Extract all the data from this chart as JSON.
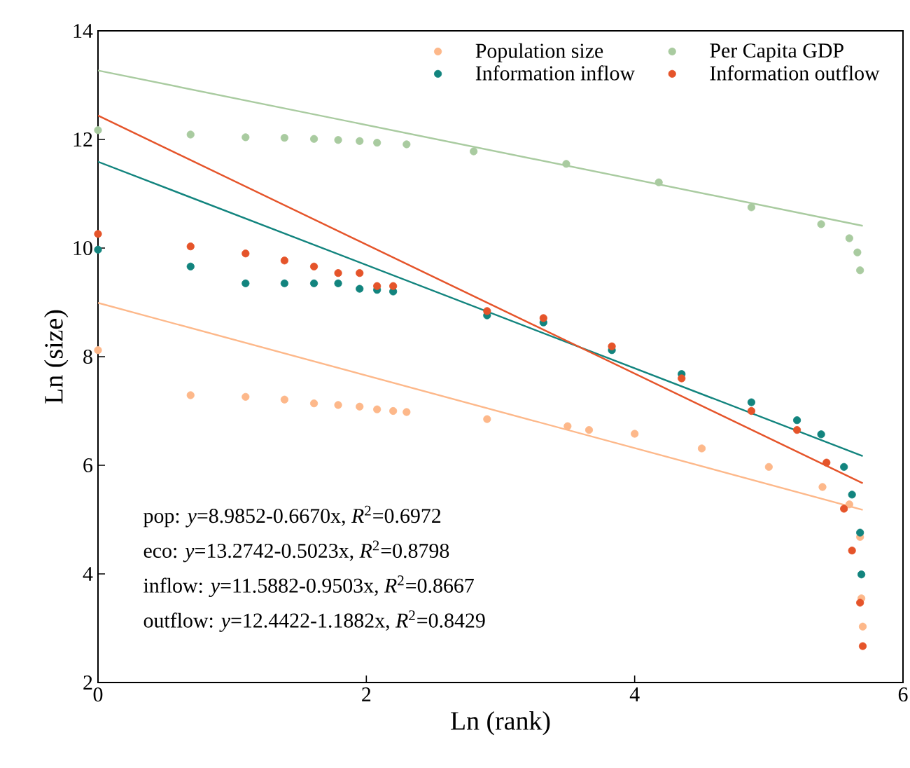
{
  "chart_data": {
    "type": "scatter",
    "xlabel": "Ln (rank)",
    "ylabel": "Ln (size)",
    "xlim": [
      0,
      6
    ],
    "ylim": [
      2,
      14
    ],
    "xticks": [
      0,
      2,
      4,
      6
    ],
    "yticks": [
      2,
      4,
      6,
      8,
      10,
      12,
      14
    ],
    "grid": false,
    "legend": "top right",
    "series": [
      {
        "name": "Population size",
        "marker": "circle",
        "color": "#fdb88a",
        "x": [
          0,
          0.69,
          1.1,
          1.39,
          1.61,
          1.79,
          1.95,
          2.08,
          2.2,
          2.3,
          2.9,
          3.5,
          3.66,
          4.0,
          4.5,
          5.0,
          5.4,
          5.6,
          5.68,
          5.69,
          5.7
        ],
        "values": [
          8.12,
          7.29,
          7.26,
          7.21,
          7.14,
          7.11,
          7.08,
          7.03,
          7.0,
          6.98,
          6.85,
          6.72,
          6.65,
          6.58,
          6.31,
          5.97,
          5.6,
          5.28,
          4.68,
          3.55,
          3.03
        ]
      },
      {
        "name": "Per Capita GDP",
        "marker": "circle",
        "color": "#a9cba0",
        "x": [
          0,
          0.69,
          1.1,
          1.39,
          1.61,
          1.79,
          1.95,
          2.08,
          2.3,
          2.8,
          3.49,
          4.18,
          4.87,
          5.39,
          5.6,
          5.66,
          5.68
        ],
        "values": [
          12.17,
          12.09,
          12.04,
          12.03,
          12.01,
          11.99,
          11.97,
          11.94,
          11.91,
          11.78,
          11.55,
          11.21,
          10.75,
          10.44,
          10.18,
          9.92,
          9.59
        ]
      },
      {
        "name": "Information inflow",
        "marker": "circle",
        "color": "#12847e",
        "x": [
          0,
          0.69,
          1.1,
          1.39,
          1.61,
          1.79,
          1.95,
          2.08,
          2.2,
          2.9,
          3.32,
          3.83,
          4.35,
          4.87,
          5.21,
          5.39,
          5.56,
          5.62,
          5.68,
          5.69
        ],
        "values": [
          9.97,
          9.66,
          9.35,
          9.35,
          9.35,
          9.35,
          9.25,
          9.23,
          9.2,
          8.76,
          8.63,
          8.12,
          7.68,
          7.16,
          6.83,
          6.57,
          5.97,
          5.46,
          4.76,
          3.99
        ]
      },
      {
        "name": "Information outflow",
        "marker": "circle",
        "color": "#e5542a",
        "x": [
          0,
          0.69,
          1.1,
          1.39,
          1.61,
          1.79,
          1.95,
          2.08,
          2.2,
          2.9,
          3.32,
          3.83,
          4.35,
          4.87,
          5.21,
          5.43,
          5.56,
          5.62,
          5.68,
          5.7
        ],
        "values": [
          10.26,
          10.03,
          9.9,
          9.77,
          9.66,
          9.54,
          9.54,
          9.3,
          9.3,
          8.84,
          8.71,
          8.19,
          7.6,
          7.0,
          6.65,
          6.05,
          5.2,
          4.43,
          3.47,
          2.67
        ]
      },
      {
        "type": "line",
        "marker": "none",
        "color": "#fdb88a",
        "x": [
          0,
          5.7
        ],
        "values": [
          8.99,
          5.18
        ]
      },
      {
        "type": "line",
        "marker": "none",
        "color": "#a9cba0",
        "x": [
          0,
          5.7
        ],
        "values": [
          13.27,
          10.41
        ]
      },
      {
        "type": "line",
        "marker": "none",
        "color": "#12847e",
        "x": [
          0,
          5.7
        ],
        "values": [
          11.59,
          6.17
        ]
      },
      {
        "type": "line",
        "marker": "none",
        "color": "#e5542a",
        "x": [
          0,
          5.7
        ],
        "values": [
          12.44,
          5.67
        ]
      }
    ],
    "annotations": [
      "pop: *y*=8.9852-0.6670x, *R*$^{2}$=0.6972",
      "eco: *y*=13.2742-0.5023x, *R*$^{2}$=0.8798",
      "inflow: *y*=11.5882-0.9503x, *R*$^{2}$=0.8667",
      "outflow: *y*=12.4422-1.1882x, *R*$^{2}$=0.8429"
    ]
  }
}
